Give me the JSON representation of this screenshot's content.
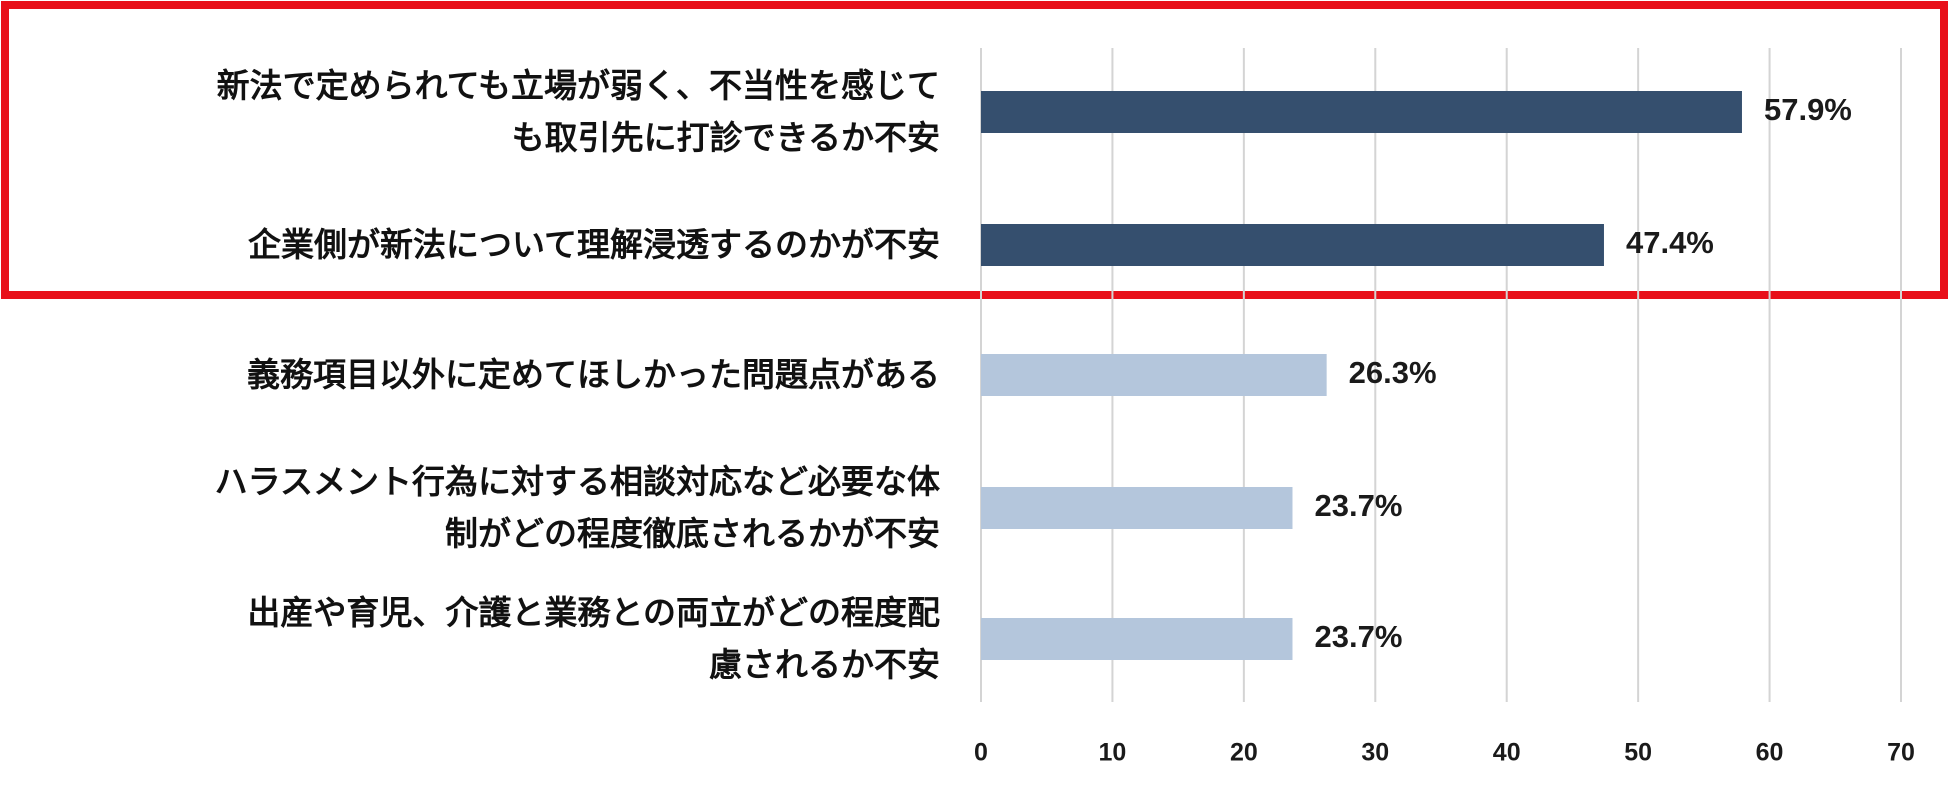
{
  "chart_data": {
    "type": "bar",
    "orientation": "horizontal",
    "categories": [
      "新法で定められても立場が弱く、不当性を感じて\nも取引先に打診できるか不安",
      "企業側が新法について理解浸透するのかが不安",
      "義務項目以外に定めてほしかった問題点がある",
      "ハラスメント行為に対する相談対応など必要な体\n制がどの程度徹底されるかが不安",
      "出産や育児、介護と業務との両立がどの程度配\n慮されるか不安"
    ],
    "values": [
      57.9,
      47.4,
      26.3,
      23.7,
      23.7
    ],
    "value_labels": [
      "57.9%",
      "47.4%",
      "26.3%",
      "23.7%",
      "23.7%"
    ],
    "colors": [
      "#354f6e",
      "#354f6e",
      "#b4c6dc",
      "#b4c6dc",
      "#b4c6dc"
    ],
    "xlim": [
      0,
      70
    ],
    "xticks": [
      0,
      10,
      20,
      30,
      40,
      50,
      60,
      70
    ],
    "grid": true
  }
}
